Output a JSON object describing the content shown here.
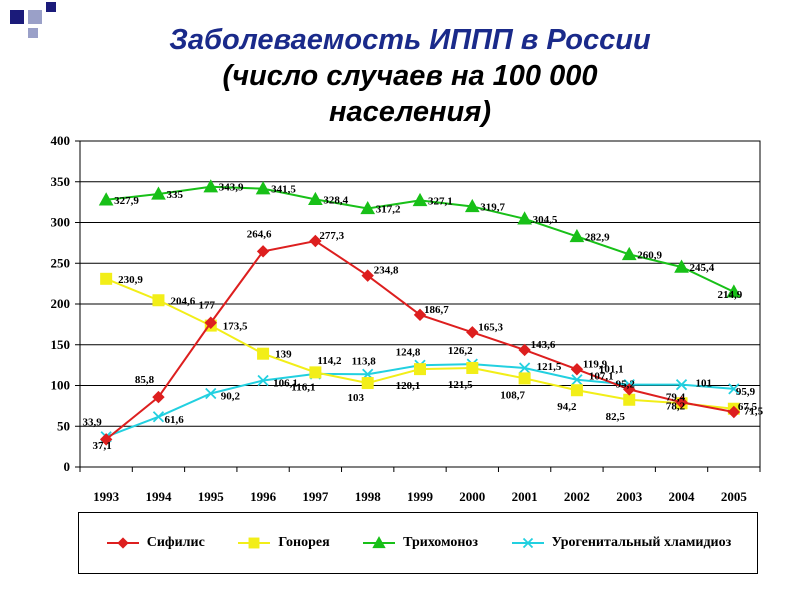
{
  "title": {
    "line1": "Заболеваемость ИППП в России",
    "line2": "(число случаев на 100 000",
    "line3": "населения)"
  },
  "colors": {
    "title_blue": "#1a2a8a",
    "decor_navy": "#1b1b7a",
    "decor_gray": "#9aa0c8"
  },
  "chart_data": {
    "type": "line",
    "title": "Заболеваемость ИППП в России (число случаев на 100 000 населения)",
    "xlabel": "",
    "ylabel": "",
    "ylim": [
      0,
      400
    ],
    "yticks": [
      0,
      50,
      100,
      150,
      200,
      250,
      300,
      350,
      400
    ],
    "grid": true,
    "legend_position": "bottom",
    "categories": [
      "1993",
      "1994",
      "1995",
      "1996",
      "1997",
      "1998",
      "1999",
      "2000",
      "2001",
      "2002",
      "2003",
      "2004",
      "2005"
    ],
    "series": [
      {
        "name": "Сифилис",
        "color": "#dd1f1f",
        "marker": "diamond",
        "values": [
          33.9,
          85.8,
          177,
          264.6,
          277.3,
          234.8,
          186.7,
          165.3,
          143.6,
          119.9,
          95.2,
          79.4,
          67.5
        ],
        "labels": [
          "33,9",
          "85,8",
          "177",
          "264,6",
          "277,3",
          "234,8",
          "186,7",
          "165,3",
          "143,6",
          "119,9",
          "95,2",
          "79,4",
          "67,5"
        ]
      },
      {
        "name": "Гонорея",
        "color": "#f2ee18",
        "marker": "square",
        "values": [
          230.9,
          204.6,
          173.5,
          139,
          116.1,
          103,
          120.1,
          121.5,
          108.7,
          94.2,
          82.5,
          78.2,
          71.5
        ],
        "labels": [
          "230,9",
          "204,6",
          "173,5",
          "139",
          "116,1",
          "103",
          "120,1",
          "121,5",
          "108,7",
          "94,2",
          "82,5",
          "78,2",
          "71,5"
        ]
      },
      {
        "name": "Трихомоноз",
        "color": "#18c018",
        "marker": "triangle",
        "values": [
          327.9,
          335,
          343.9,
          341.5,
          328.4,
          317.2,
          327.1,
          319.7,
          304.5,
          282.9,
          260.9,
          245.4,
          214.9
        ],
        "labels": [
          "327,9",
          "335",
          "343,9",
          "341,5",
          "328,4",
          "317,2",
          "327,1",
          "319,7",
          "304,5",
          "282,9",
          "260,9",
          "245,4",
          "214,9"
        ]
      },
      {
        "name": "Урогенитальный хламидиоз",
        "color": "#22d0e0",
        "marker": "x",
        "values": [
          37.1,
          61.6,
          90.2,
          106.1,
          114.2,
          113.8,
          124.8,
          126.2,
          121.5,
          107.1,
          101.1,
          101,
          95.9
        ],
        "labels": [
          "37,1",
          "61,6",
          "90,2",
          "106,1",
          "114,2",
          "113,8",
          "124,8",
          "126,2",
          "121,5",
          "107,1",
          "101,1",
          "101",
          "95,9"
        ]
      }
    ]
  }
}
